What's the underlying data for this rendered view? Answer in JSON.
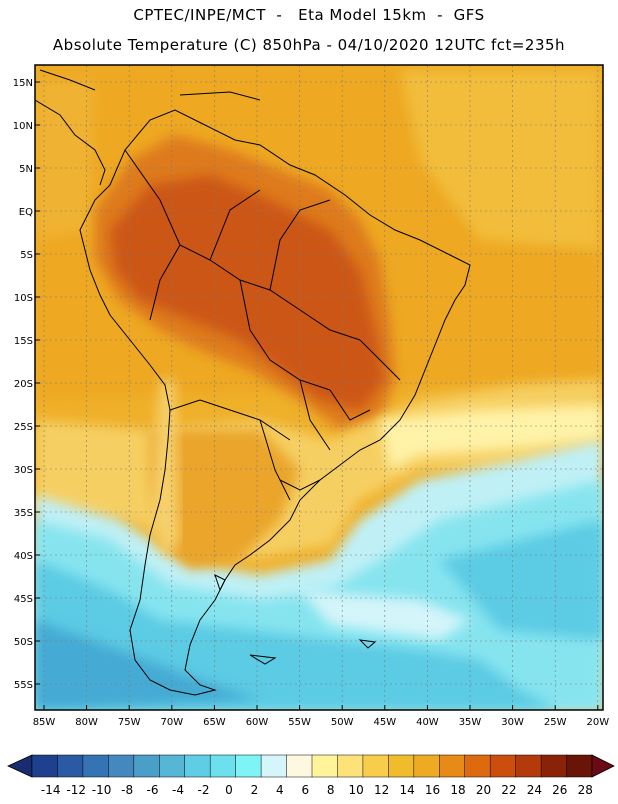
{
  "header": {
    "line1": "CPTEC/INPE/MCT  -   Eta Model 15km  -  GFS",
    "line2": "Absolute Temperature (C) 850hPa - 04/10/2020 12UTC fct=235h"
  },
  "axes": {
    "lat_labels": [
      "15N",
      "10N",
      "5N",
      "EQ",
      "5S",
      "10S",
      "15S",
      "20S",
      "25S",
      "30S",
      "35S",
      "40S",
      "45S",
      "50S",
      "55S"
    ],
    "lon_labels": [
      "85W",
      "80W",
      "75W",
      "70W",
      "65W",
      "60W",
      "55W",
      "50W",
      "45W",
      "40W",
      "35W",
      "30W",
      "25W",
      "20W"
    ]
  },
  "colorbar": {
    "labels": [
      "-14",
      "-12",
      "-10",
      "-8",
      "-6",
      "-4",
      "-2",
      "0",
      "2",
      "4",
      "6",
      "8",
      "10",
      "12",
      "14",
      "16",
      "18",
      "20",
      "22",
      "24",
      "26",
      "28"
    ],
    "colors": [
      "#1f3f8f",
      "#2a5aa3",
      "#3574b4",
      "#4588c0",
      "#4a9fc8",
      "#55b6d6",
      "#5fcde6",
      "#6de0ee",
      "#7ef4f7",
      "#d4f5fa",
      "#fff8e0",
      "#fff49a",
      "#fde27a",
      "#f8cd4c",
      "#f0bc2c",
      "#eeaa22",
      "#e88a18",
      "#de6a10",
      "#cc4e0c",
      "#b33a0a",
      "#8a2208",
      "#6a1408"
    ],
    "low_arrow_color": "#1a2c70",
    "high_arrow_color": "#6a0a14"
  },
  "colors": {
    "hot": "#c85a14",
    "warm": "#e9a028",
    "mild": "#f4c242",
    "cool_pale": "#fff0b0",
    "cold": "#8ee8f0",
    "colder": "#5ccde6",
    "coldest": "#3fa8d0"
  }
}
